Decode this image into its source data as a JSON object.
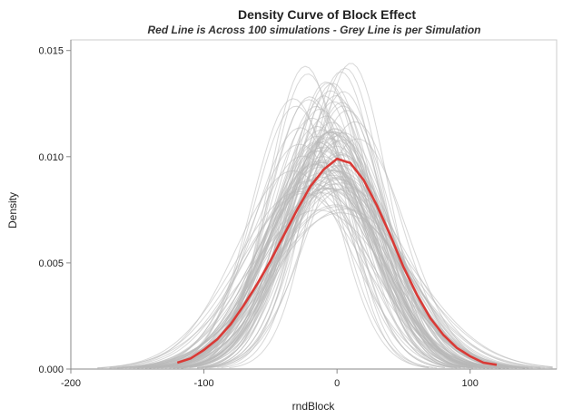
{
  "chart_data": {
    "type": "line",
    "title": "Density Curve of Block Effect",
    "subtitle": "Red Line is Across 100 simulations - Grey Line is per Simulation",
    "xlabel": "rndBlock",
    "ylabel": "Density",
    "xlim": [
      -200,
      165
    ],
    "ylim": [
      0,
      0.0155
    ],
    "x_ticks": [
      -200,
      -100,
      0,
      100
    ],
    "x_tick_labels": [
      "-200",
      "-100",
      "0",
      "100"
    ],
    "y_ticks": [
      0.0,
      0.005,
      0.01,
      0.015
    ],
    "y_tick_labels": [
      "0.000",
      "0.005",
      "0.010",
      "0.015"
    ],
    "grid": false,
    "legend": "none",
    "colors": {
      "summary": "#d93a36",
      "simulations": "#b8b8b8",
      "axis": "#888888",
      "frame": "#cccccc"
    },
    "series": [
      {
        "curve": "summary",
        "x": [
          -120,
          -110,
          -100,
          -90,
          -80,
          -70,
          -60,
          -50,
          -40,
          -30,
          -20,
          -10,
          0,
          10,
          20,
          30,
          40,
          50,
          60,
          70,
          80,
          90,
          100,
          110,
          120
        ],
        "values": [
          0.0003,
          0.0005,
          0.0009,
          0.0014,
          0.0021,
          0.003,
          0.004,
          0.0051,
          0.0063,
          0.0075,
          0.0086,
          0.0094,
          0.0099,
          0.0097,
          0.0089,
          0.0077,
          0.0063,
          0.0048,
          0.0035,
          0.0024,
          0.0016,
          0.001,
          0.0006,
          0.0003,
          0.0002
        ]
      }
    ],
    "simulation_curves": {
      "count": 100,
      "distribution": "normal",
      "mean_range": [
        -40,
        28
      ],
      "peak_density_range": [
        0.0073,
        0.015
      ],
      "note": "each grey curve is a normal density; means cluster near 0"
    }
  }
}
